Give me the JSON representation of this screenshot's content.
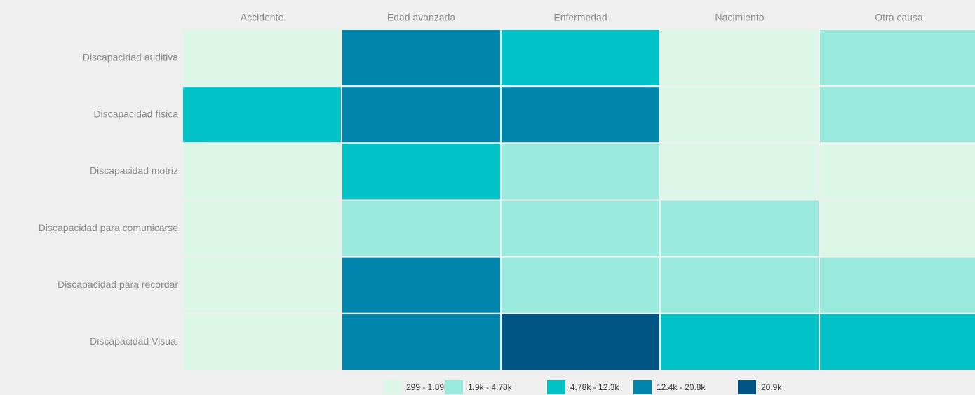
{
  "chart_data": {
    "type": "heatmap",
    "columns": [
      "Accidente",
      "Edad avanzada",
      "Enfermedad",
      "Nacimiento",
      "Otra causa"
    ],
    "rows": [
      "Discapacidad auditiva",
      "Discapacidad física",
      "Discapacidad motriz",
      "Discapacidad para comunicarse",
      "Discapacidad para recordar",
      "Discapacidad Visual"
    ],
    "values": [
      [
        1200,
        15000,
        8000,
        1500,
        3000
      ],
      [
        7000,
        16000,
        14000,
        900,
        3200
      ],
      [
        1100,
        9000,
        3500,
        800,
        1300
      ],
      [
        299,
        2500,
        2800,
        3000,
        700
      ],
      [
        1000,
        14500,
        3300,
        3100,
        3400
      ],
      [
        1400,
        13500,
        20900,
        7500,
        7800
      ]
    ],
    "legend": [
      {
        "label": "299 - 1.89k",
        "color": "#dcf7e8",
        "range": [
          299,
          1890
        ]
      },
      {
        "label": "1.9k - 4.78k",
        "color": "#99eadc",
        "range": [
          1900,
          4780
        ]
      },
      {
        "label": "4.78k - 12.3k",
        "color": "#00c2c7",
        "range": [
          4780,
          12300
        ]
      },
      {
        "label": "12.4k - 20.8k",
        "color": "#0086ad",
        "range": [
          12400,
          20800
        ]
      },
      {
        "label": "20.9k",
        "color": "#005584",
        "range": [
          20900,
          20900
        ]
      }
    ]
  }
}
